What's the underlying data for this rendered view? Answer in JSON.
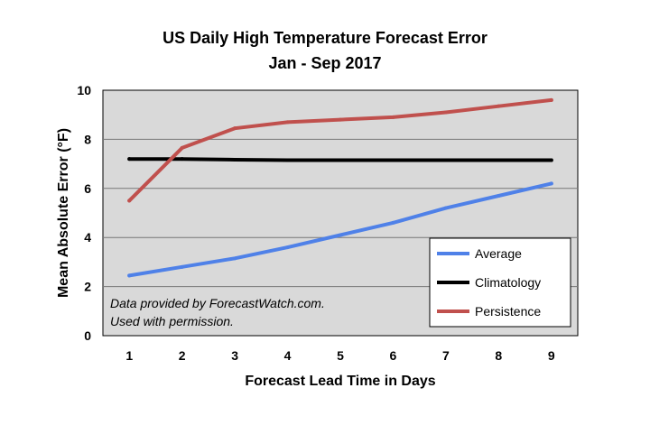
{
  "chart_data": {
    "type": "line",
    "title": "US Daily High Temperature Forecast Error",
    "subtitle": "Jan - Sep 2017",
    "xlabel": "Forecast Lead Time in Days",
    "ylabel": "Mean Absolute Error (°F)",
    "x": [
      1,
      2,
      3,
      4,
      5,
      6,
      7,
      8,
      9
    ],
    "x_tick_labels": [
      "1",
      "2",
      "3",
      "4",
      "5",
      "6",
      "7",
      "8",
      "9"
    ],
    "y_ticks": [
      0,
      2,
      4,
      6,
      8,
      10
    ],
    "y_tick_labels": [
      "0",
      "2",
      "4",
      "6",
      "8",
      "10"
    ],
    "ylim": [
      0,
      10
    ],
    "xlim": [
      0.5,
      9.5
    ],
    "grid": true,
    "background_color": "#d9d9d9",
    "legend_position": "bottom-right",
    "series": [
      {
        "name": "Average",
        "color": "#4f81e8",
        "values": [
          2.45,
          2.8,
          3.15,
          3.6,
          4.1,
          4.6,
          5.2,
          5.7,
          6.2
        ]
      },
      {
        "name": "Climatology",
        "color": "#000000",
        "values": [
          7.2,
          7.2,
          7.17,
          7.15,
          7.15,
          7.15,
          7.15,
          7.15,
          7.15
        ]
      },
      {
        "name": "Persistence",
        "color": "#c0504d",
        "values": [
          5.5,
          7.65,
          8.45,
          8.7,
          8.8,
          8.9,
          9.1,
          9.35,
          9.6
        ]
      }
    ],
    "annotation": [
      "Data provided by ForecastWatch.com.",
      "Used with permission."
    ]
  }
}
